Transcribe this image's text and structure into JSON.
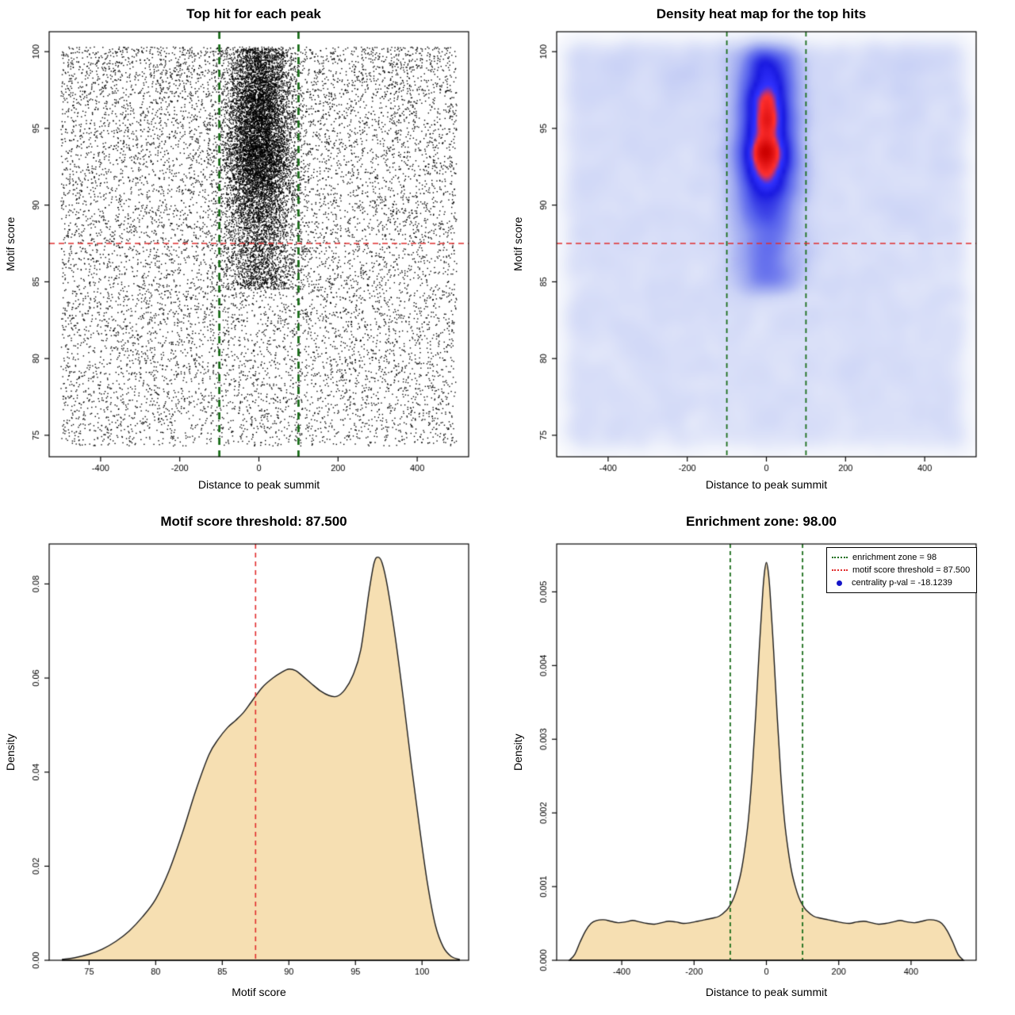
{
  "page": {
    "background": "#ffffff"
  },
  "chart_data": [
    {
      "type": "scatter",
      "title": "Top hit for each peak",
      "xlabel": "Distance to peak summit",
      "ylabel": "Motif score",
      "xlim": [
        -530,
        530
      ],
      "ylim": [
        73.6,
        101.3
      ],
      "xticks": [
        -400,
        -200,
        0,
        200,
        400
      ],
      "xtick_labels": [
        "-400",
        "-200",
        "0",
        "200",
        "400"
      ],
      "yticks": [
        75,
        80,
        85,
        90,
        95,
        100
      ],
      "ytick_labels": [
        "75",
        "80",
        "85",
        "90",
        "95",
        "100"
      ],
      "threshold_line": {
        "y": 87.5,
        "color": "#e12c2c",
        "width": 1.6,
        "dash": [
          7,
          5
        ]
      },
      "zone_lines": {
        "x": [
          -100,
          100
        ],
        "color": "#1b6e1b",
        "width": 2.8,
        "dash": [
          9,
          7
        ]
      },
      "points_model": {
        "seed": 20240613,
        "color": "#000000",
        "size": 1.4,
        "background": {
          "n": 11000,
          "x_range": [
            -500,
            500
          ],
          "y_top": 100.3,
          "y_span": 26,
          "exponent": 1.15
        },
        "cluster": {
          "n": 6500,
          "x_sd": 40,
          "y_mean": 95.4,
          "y_sd": 3.1
        },
        "stem": {
          "n": 3000,
          "x_sd": 50,
          "y_range": [
            84.5,
            94
          ]
        }
      }
    },
    {
      "type": "heatmap",
      "title": "Density heat map for the top hits",
      "xlabel": "Distance to peak summit",
      "ylabel": "Motif score",
      "xlim": [
        -530,
        530
      ],
      "ylim": [
        73.6,
        101.3
      ],
      "xticks": [
        -400,
        -200,
        0,
        200,
        400
      ],
      "xtick_labels": [
        "-400",
        "-200",
        "0",
        "200",
        "400"
      ],
      "yticks": [
        75,
        80,
        85,
        90,
        95,
        100
      ],
      "ytick_labels": [
        "75",
        "80",
        "85",
        "90",
        "95",
        "100"
      ],
      "points_source": 0,
      "grid": [
        132,
        132
      ],
      "kernel_sigma": 2.6,
      "gamma": 0.42,
      "hotspot": {
        "x": 0,
        "y": 96.3
      },
      "colormap": [
        [
          0,
          "#ffffff"
        ],
        [
          0.15,
          "#eef1fb"
        ],
        [
          0.34,
          "#ccd4f6"
        ],
        [
          0.52,
          "#97a2f0"
        ],
        [
          0.68,
          "#5560ec"
        ],
        [
          0.8,
          "#1a1ae0"
        ],
        [
          0.88,
          "#3333ff"
        ],
        [
          0.93,
          "#ff3030"
        ],
        [
          1,
          "#cc0000"
        ]
      ],
      "threshold_line": {
        "y": 87.5,
        "color": "#e12c2c",
        "width": 1.6,
        "dash": [
          7,
          5
        ]
      },
      "zone_lines": {
        "x": [
          -100,
          100
        ],
        "color": "#1b6e1b",
        "width": 1.8,
        "dash": [
          6,
          5
        ]
      }
    },
    {
      "type": "area",
      "title": "Motif score threshold: 87.500",
      "xlabel": "Motif score",
      "ylabel": "Density",
      "xlim": [
        72,
        103.5
      ],
      "ylim": [
        0,
        0.0885
      ],
      "xticks": [
        75,
        80,
        85,
        90,
        95,
        100
      ],
      "xtick_labels": [
        "75",
        "80",
        "85",
        "90",
        "95",
        "100"
      ],
      "yticks": [
        0,
        0.02,
        0.04,
        0.06,
        0.08
      ],
      "ytick_labels": [
        "0.00",
        "0.02",
        "0.04",
        "0.06",
        "0.08"
      ],
      "fill": "#f6dfb2",
      "stroke": "#1a1a1a",
      "threshold_line": {
        "x": 87.5,
        "color": "#e12c2c",
        "width": 1.6,
        "dash": [
          6,
          5
        ]
      },
      "curve": [
        [
          73,
          0.0002
        ],
        [
          74,
          0.0006
        ],
        [
          75,
          0.0013
        ],
        [
          76,
          0.0024
        ],
        [
          77,
          0.004
        ],
        [
          78,
          0.0062
        ],
        [
          79,
          0.0092
        ],
        [
          80,
          0.013
        ],
        [
          81,
          0.019
        ],
        [
          82,
          0.027
        ],
        [
          83,
          0.036
        ],
        [
          84,
          0.0437
        ],
        [
          84.7,
          0.047
        ],
        [
          85.4,
          0.0495
        ],
        [
          86,
          0.051
        ],
        [
          86.6,
          0.0527
        ],
        [
          87.2,
          0.055
        ],
        [
          88,
          0.058
        ],
        [
          88.8,
          0.06
        ],
        [
          89.5,
          0.0613
        ],
        [
          90,
          0.0619
        ],
        [
          90.5,
          0.0616
        ],
        [
          91,
          0.0605
        ],
        [
          91.7,
          0.0588
        ],
        [
          92.4,
          0.0572
        ],
        [
          93,
          0.0563
        ],
        [
          93.6,
          0.0561
        ],
        [
          94.2,
          0.0575
        ],
        [
          94.8,
          0.0605
        ],
        [
          95.4,
          0.066
        ],
        [
          96,
          0.078
        ],
        [
          96.4,
          0.0845
        ],
        [
          96.7,
          0.0857
        ],
        [
          97,
          0.0845
        ],
        [
          97.4,
          0.0795
        ],
        [
          98,
          0.0685
        ],
        [
          98.6,
          0.0555
        ],
        [
          99.2,
          0.0415
        ],
        [
          99.8,
          0.0285
        ],
        [
          100.4,
          0.0165
        ],
        [
          101,
          0.0075
        ],
        [
          101.6,
          0.0028
        ],
        [
          102.2,
          0.0008
        ],
        [
          102.8,
          0.0002
        ]
      ]
    },
    {
      "type": "area",
      "title": "Enrichment zone: 98.00",
      "xlabel": "Distance to peak summit",
      "ylabel": "Density",
      "xlim": [
        -580,
        580
      ],
      "ylim": [
        0,
        0.00565
      ],
      "xticks": [
        -400,
        -200,
        0,
        200,
        400
      ],
      "xtick_labels": [
        "-400",
        "-200",
        "0",
        "200",
        "400"
      ],
      "yticks": [
        0,
        0.001,
        0.002,
        0.003,
        0.004,
        0.005
      ],
      "ytick_labels": [
        "0.000",
        "0.001",
        "0.002",
        "0.003",
        "0.004",
        "0.005"
      ],
      "fill": "#f6dfb2",
      "stroke": "#1a1a1a",
      "zone_lines": {
        "x": [
          -100,
          100
        ],
        "color": "#1b6e1b",
        "width": 1.8,
        "dash": [
          5,
          4
        ]
      },
      "legend": {
        "items": [
          {
            "label": "enrichment zone = 98",
            "color": "#1b6e1b",
            "type": "dotted-line"
          },
          {
            "label": "motif score threshold = 87.500",
            "color": "#e12c2c",
            "type": "dotted-line"
          },
          {
            "label": "centrality p-val = -18.1239",
            "color": "#1515c8",
            "type": "dot"
          }
        ]
      },
      "curve": [
        [
          -545,
          0
        ],
        [
          -530,
          8e-05
        ],
        [
          -515,
          0.00025
        ],
        [
          -500,
          0.0004
        ],
        [
          -485,
          0.0005
        ],
        [
          -470,
          0.00054
        ],
        [
          -450,
          0.00055
        ],
        [
          -430,
          0.00053
        ],
        [
          -410,
          0.00051
        ],
        [
          -390,
          0.00052
        ],
        [
          -370,
          0.00054
        ],
        [
          -350,
          0.00052
        ],
        [
          -330,
          0.0005
        ],
        [
          -310,
          0.00049
        ],
        [
          -290,
          0.00051
        ],
        [
          -270,
          0.00053
        ],
        [
          -250,
          0.00052
        ],
        [
          -230,
          0.0005
        ],
        [
          -210,
          0.00051
        ],
        [
          -190,
          0.00053
        ],
        [
          -170,
          0.00055
        ],
        [
          -150,
          0.00057
        ],
        [
          -130,
          0.0006
        ],
        [
          -110,
          0.00068
        ],
        [
          -100,
          0.00075
        ],
        [
          -90,
          0.00085
        ],
        [
          -80,
          0.001
        ],
        [
          -70,
          0.0012
        ],
        [
          -60,
          0.0015
        ],
        [
          -50,
          0.0019
        ],
        [
          -40,
          0.0025
        ],
        [
          -30,
          0.0033
        ],
        [
          -20,
          0.0042
        ],
        [
          -10,
          0.005
        ],
        [
          -5,
          0.00528
        ],
        [
          0,
          0.0054
        ],
        [
          5,
          0.00528
        ],
        [
          10,
          0.005
        ],
        [
          20,
          0.0042
        ],
        [
          30,
          0.0033
        ],
        [
          40,
          0.0025
        ],
        [
          50,
          0.0019
        ],
        [
          60,
          0.0015
        ],
        [
          70,
          0.0012
        ],
        [
          80,
          0.001
        ],
        [
          90,
          0.00085
        ],
        [
          100,
          0.00075
        ],
        [
          110,
          0.00068
        ],
        [
          130,
          0.0006
        ],
        [
          150,
          0.00057
        ],
        [
          170,
          0.00055
        ],
        [
          190,
          0.00053
        ],
        [
          210,
          0.00051
        ],
        [
          230,
          0.0005
        ],
        [
          250,
          0.00052
        ],
        [
          270,
          0.00053
        ],
        [
          290,
          0.00051
        ],
        [
          310,
          0.00049
        ],
        [
          330,
          0.0005
        ],
        [
          350,
          0.00052
        ],
        [
          370,
          0.00054
        ],
        [
          390,
          0.00052
        ],
        [
          410,
          0.00051
        ],
        [
          430,
          0.00053
        ],
        [
          450,
          0.00055
        ],
        [
          470,
          0.00054
        ],
        [
          485,
          0.0005
        ],
        [
          500,
          0.0004
        ],
        [
          515,
          0.00025
        ],
        [
          530,
          8e-05
        ],
        [
          545,
          0
        ]
      ]
    }
  ]
}
